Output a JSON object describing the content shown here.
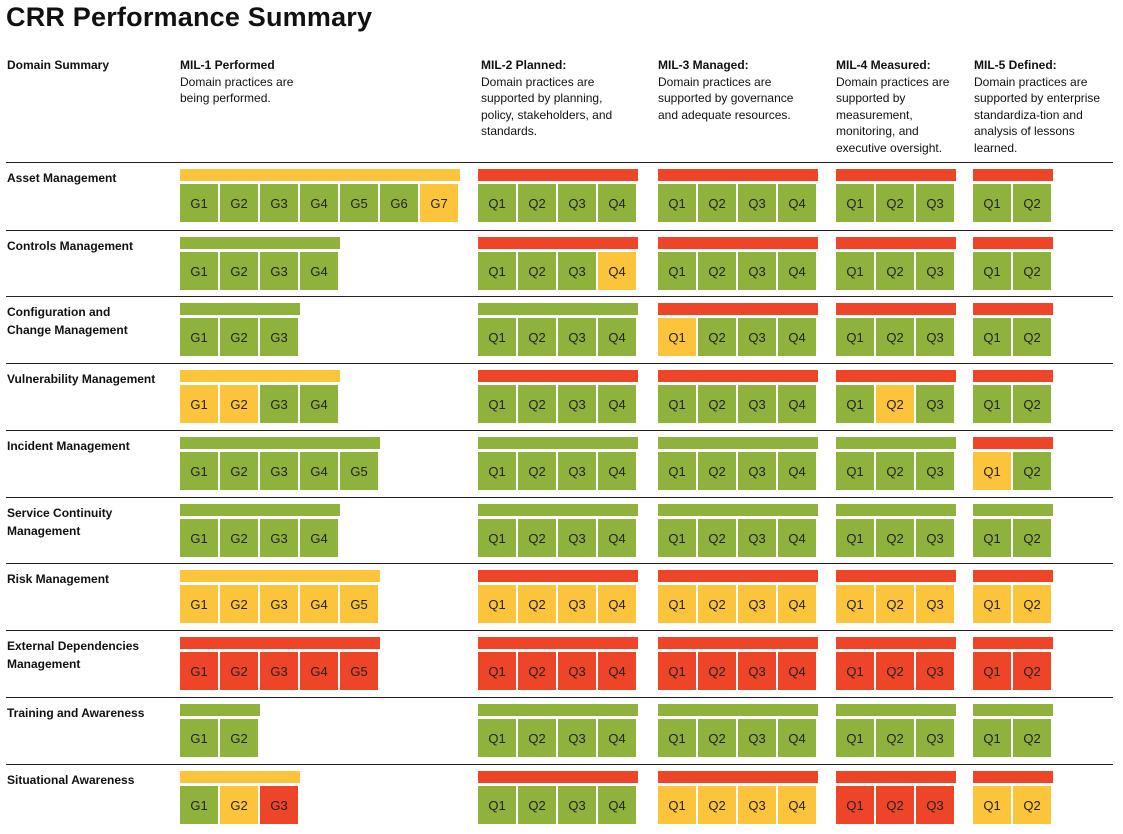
{
  "title": "CRR Performance Summary",
  "colors": {
    "green": "#8fb23c",
    "yellow": "#fcc43a",
    "red": "#ee4428"
  },
  "headers": [
    {
      "title": "Domain Summary",
      "desc": ""
    },
    {
      "title": "MIL-1 Performed",
      "desc": "Domain practices are being performed."
    },
    {
      "title": "MIL-2 Planned:",
      "desc": "Domain practices are supported by planning, policy, stakeholders, and standards."
    },
    {
      "title": "MIL-3 Managed:",
      "desc": "Domain practices are supported by governance and adequate resources."
    },
    {
      "title": "MIL-4 Measured:",
      "desc": "Domain practices are supported by measurement, monitoring, and executive oversight."
    },
    {
      "title": "MIL-5 Defined:",
      "desc": "Domain practices  are supported by enterprise standardiza-tion and analysis of lessons learned."
    }
  ],
  "domains": [
    {
      "name": "Asset Management",
      "mils": [
        {
          "bar": "yellow",
          "cells": [
            [
              "G1",
              "green"
            ],
            [
              "G2",
              "green"
            ],
            [
              "G3",
              "green"
            ],
            [
              "G4",
              "green"
            ],
            [
              "G5",
              "green"
            ],
            [
              "G6",
              "green"
            ],
            [
              "G7",
              "yellow"
            ]
          ]
        },
        {
          "bar": "red",
          "cells": [
            [
              "Q1",
              "green"
            ],
            [
              "Q2",
              "green"
            ],
            [
              "Q3",
              "green"
            ],
            [
              "Q4",
              "green"
            ]
          ]
        },
        {
          "bar": "red",
          "cells": [
            [
              "Q1",
              "green"
            ],
            [
              "Q2",
              "green"
            ],
            [
              "Q3",
              "green"
            ],
            [
              "Q4",
              "green"
            ]
          ]
        },
        {
          "bar": "red",
          "cells": [
            [
              "Q1",
              "green"
            ],
            [
              "Q2",
              "green"
            ],
            [
              "Q3",
              "green"
            ]
          ]
        },
        {
          "bar": "red",
          "cells": [
            [
              "Q1",
              "green"
            ],
            [
              "Q2",
              "green"
            ]
          ]
        }
      ]
    },
    {
      "name": "Controls Management",
      "mils": [
        {
          "bar": "green",
          "cells": [
            [
              "G1",
              "green"
            ],
            [
              "G2",
              "green"
            ],
            [
              "G3",
              "green"
            ],
            [
              "G4",
              "green"
            ]
          ]
        },
        {
          "bar": "red",
          "cells": [
            [
              "Q1",
              "green"
            ],
            [
              "Q2",
              "green"
            ],
            [
              "Q3",
              "green"
            ],
            [
              "Q4",
              "yellow"
            ]
          ]
        },
        {
          "bar": "red",
          "cells": [
            [
              "Q1",
              "green"
            ],
            [
              "Q2",
              "green"
            ],
            [
              "Q3",
              "green"
            ],
            [
              "Q4",
              "green"
            ]
          ]
        },
        {
          "bar": "red",
          "cells": [
            [
              "Q1",
              "green"
            ],
            [
              "Q2",
              "green"
            ],
            [
              "Q3",
              "green"
            ]
          ]
        },
        {
          "bar": "red",
          "cells": [
            [
              "Q1",
              "green"
            ],
            [
              "Q2",
              "green"
            ]
          ]
        }
      ]
    },
    {
      "name": "Configuration and Change Management",
      "mils": [
        {
          "bar": "green",
          "cells": [
            [
              "G1",
              "green"
            ],
            [
              "G2",
              "green"
            ],
            [
              "G3",
              "green"
            ]
          ]
        },
        {
          "bar": "green",
          "cells": [
            [
              "Q1",
              "green"
            ],
            [
              "Q2",
              "green"
            ],
            [
              "Q3",
              "green"
            ],
            [
              "Q4",
              "green"
            ]
          ]
        },
        {
          "bar": "red",
          "cells": [
            [
              "Q1",
              "yellow"
            ],
            [
              "Q2",
              "green"
            ],
            [
              "Q3",
              "green"
            ],
            [
              "Q4",
              "green"
            ]
          ]
        },
        {
          "bar": "red",
          "cells": [
            [
              "Q1",
              "green"
            ],
            [
              "Q2",
              "green"
            ],
            [
              "Q3",
              "green"
            ]
          ]
        },
        {
          "bar": "red",
          "cells": [
            [
              "Q1",
              "green"
            ],
            [
              "Q2",
              "green"
            ]
          ]
        }
      ]
    },
    {
      "name": "Vulnerability Management",
      "mils": [
        {
          "bar": "yellow",
          "cells": [
            [
              "G1",
              "yellow"
            ],
            [
              "G2",
              "yellow"
            ],
            [
              "G3",
              "green"
            ],
            [
              "G4",
              "green"
            ]
          ]
        },
        {
          "bar": "red",
          "cells": [
            [
              "Q1",
              "green"
            ],
            [
              "Q2",
              "green"
            ],
            [
              "Q3",
              "green"
            ],
            [
              "Q4",
              "green"
            ]
          ]
        },
        {
          "bar": "red",
          "cells": [
            [
              "Q1",
              "green"
            ],
            [
              "Q2",
              "green"
            ],
            [
              "Q3",
              "green"
            ],
            [
              "Q4",
              "green"
            ]
          ]
        },
        {
          "bar": "red",
          "cells": [
            [
              "Q1",
              "green"
            ],
            [
              "Q2",
              "yellow"
            ],
            [
              "Q3",
              "green"
            ]
          ]
        },
        {
          "bar": "red",
          "cells": [
            [
              "Q1",
              "green"
            ],
            [
              "Q2",
              "green"
            ]
          ]
        }
      ]
    },
    {
      "name": "Incident Management",
      "mils": [
        {
          "bar": "green",
          "cells": [
            [
              "G1",
              "green"
            ],
            [
              "G2",
              "green"
            ],
            [
              "G3",
              "green"
            ],
            [
              "G4",
              "green"
            ],
            [
              "G5",
              "green"
            ]
          ]
        },
        {
          "bar": "green",
          "cells": [
            [
              "Q1",
              "green"
            ],
            [
              "Q2",
              "green"
            ],
            [
              "Q3",
              "green"
            ],
            [
              "Q4",
              "green"
            ]
          ]
        },
        {
          "bar": "green",
          "cells": [
            [
              "Q1",
              "green"
            ],
            [
              "Q2",
              "green"
            ],
            [
              "Q3",
              "green"
            ],
            [
              "Q4",
              "green"
            ]
          ]
        },
        {
          "bar": "green",
          "cells": [
            [
              "Q1",
              "green"
            ],
            [
              "Q2",
              "green"
            ],
            [
              "Q3",
              "green"
            ]
          ]
        },
        {
          "bar": "red",
          "cells": [
            [
              "Q1",
              "yellow"
            ],
            [
              "Q2",
              "green"
            ]
          ]
        }
      ]
    },
    {
      "name": "Service Continuity Management",
      "mils": [
        {
          "bar": "green",
          "cells": [
            [
              "G1",
              "green"
            ],
            [
              "G2",
              "green"
            ],
            [
              "G3",
              "green"
            ],
            [
              "G4",
              "green"
            ]
          ]
        },
        {
          "bar": "green",
          "cells": [
            [
              "Q1",
              "green"
            ],
            [
              "Q2",
              "green"
            ],
            [
              "Q3",
              "green"
            ],
            [
              "Q4",
              "green"
            ]
          ]
        },
        {
          "bar": "green",
          "cells": [
            [
              "Q1",
              "green"
            ],
            [
              "Q2",
              "green"
            ],
            [
              "Q3",
              "green"
            ],
            [
              "Q4",
              "green"
            ]
          ]
        },
        {
          "bar": "green",
          "cells": [
            [
              "Q1",
              "green"
            ],
            [
              "Q2",
              "green"
            ],
            [
              "Q3",
              "green"
            ]
          ]
        },
        {
          "bar": "green",
          "cells": [
            [
              "Q1",
              "green"
            ],
            [
              "Q2",
              "green"
            ]
          ]
        }
      ]
    },
    {
      "name": "Risk Management",
      "mils": [
        {
          "bar": "yellow",
          "cells": [
            [
              "G1",
              "yellow"
            ],
            [
              "G2",
              "yellow"
            ],
            [
              "G3",
              "yellow"
            ],
            [
              "G4",
              "yellow"
            ],
            [
              "G5",
              "yellow"
            ]
          ]
        },
        {
          "bar": "red",
          "cells": [
            [
              "Q1",
              "yellow"
            ],
            [
              "Q2",
              "yellow"
            ],
            [
              "Q3",
              "yellow"
            ],
            [
              "Q4",
              "yellow"
            ]
          ]
        },
        {
          "bar": "red",
          "cells": [
            [
              "Q1",
              "yellow"
            ],
            [
              "Q2",
              "yellow"
            ],
            [
              "Q3",
              "yellow"
            ],
            [
              "Q4",
              "yellow"
            ]
          ]
        },
        {
          "bar": "red",
          "cells": [
            [
              "Q1",
              "yellow"
            ],
            [
              "Q2",
              "yellow"
            ],
            [
              "Q3",
              "yellow"
            ]
          ]
        },
        {
          "bar": "red",
          "cells": [
            [
              "Q1",
              "yellow"
            ],
            [
              "Q2",
              "yellow"
            ]
          ]
        }
      ]
    },
    {
      "name": "External Dependencies Management",
      "mils": [
        {
          "bar": "red",
          "cells": [
            [
              "G1",
              "red"
            ],
            [
              "G2",
              "red"
            ],
            [
              "G3",
              "red"
            ],
            [
              "G4",
              "red"
            ],
            [
              "G5",
              "red"
            ]
          ]
        },
        {
          "bar": "red",
          "cells": [
            [
              "Q1",
              "red"
            ],
            [
              "Q2",
              "red"
            ],
            [
              "Q3",
              "red"
            ],
            [
              "Q4",
              "red"
            ]
          ]
        },
        {
          "bar": "red",
          "cells": [
            [
              "Q1",
              "red"
            ],
            [
              "Q2",
              "red"
            ],
            [
              "Q3",
              "red"
            ],
            [
              "Q4",
              "red"
            ]
          ]
        },
        {
          "bar": "red",
          "cells": [
            [
              "Q1",
              "red"
            ],
            [
              "Q2",
              "red"
            ],
            [
              "Q3",
              "red"
            ]
          ]
        },
        {
          "bar": "red",
          "cells": [
            [
              "Q1",
              "red"
            ],
            [
              "Q2",
              "red"
            ]
          ]
        }
      ]
    },
    {
      "name": "Training and Awareness",
      "mils": [
        {
          "bar": "green",
          "cells": [
            [
              "G1",
              "green"
            ],
            [
              "G2",
              "green"
            ]
          ]
        },
        {
          "bar": "green",
          "cells": [
            [
              "Q1",
              "green"
            ],
            [
              "Q2",
              "green"
            ],
            [
              "Q3",
              "green"
            ],
            [
              "Q4",
              "green"
            ]
          ]
        },
        {
          "bar": "green",
          "cells": [
            [
              "Q1",
              "green"
            ],
            [
              "Q2",
              "green"
            ],
            [
              "Q3",
              "green"
            ],
            [
              "Q4",
              "green"
            ]
          ]
        },
        {
          "bar": "green",
          "cells": [
            [
              "Q1",
              "green"
            ],
            [
              "Q2",
              "green"
            ],
            [
              "Q3",
              "green"
            ]
          ]
        },
        {
          "bar": "green",
          "cells": [
            [
              "Q1",
              "green"
            ],
            [
              "Q2",
              "green"
            ]
          ]
        }
      ]
    },
    {
      "name": "Situational Awareness",
      "mils": [
        {
          "bar": "yellow",
          "cells": [
            [
              "G1",
              "green"
            ],
            [
              "G2",
              "yellow"
            ],
            [
              "G3",
              "red"
            ]
          ]
        },
        {
          "bar": "red",
          "cells": [
            [
              "Q1",
              "green"
            ],
            [
              "Q2",
              "green"
            ],
            [
              "Q3",
              "green"
            ],
            [
              "Q4",
              "green"
            ]
          ]
        },
        {
          "bar": "red",
          "cells": [
            [
              "Q1",
              "yellow"
            ],
            [
              "Q2",
              "yellow"
            ],
            [
              "Q3",
              "yellow"
            ],
            [
              "Q4",
              "yellow"
            ]
          ]
        },
        {
          "bar": "red",
          "cells": [
            [
              "Q1",
              "red"
            ],
            [
              "Q2",
              "red"
            ],
            [
              "Q3",
              "red"
            ]
          ]
        },
        {
          "bar": "red",
          "cells": [
            [
              "Q1",
              "yellow"
            ],
            [
              "Q2",
              "yellow"
            ]
          ]
        }
      ]
    }
  ]
}
